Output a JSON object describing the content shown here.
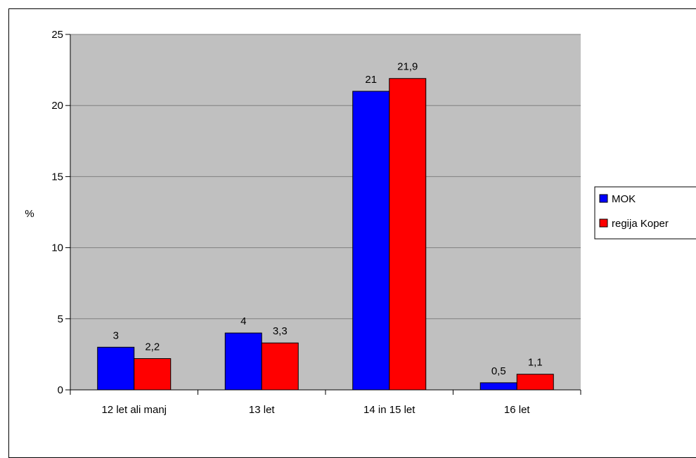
{
  "chart_data": {
    "type": "bar",
    "title": "",
    "xlabel": "",
    "ylabel": "%",
    "ylim": [
      0,
      25
    ],
    "yticks": [
      0,
      5,
      10,
      15,
      20,
      25
    ],
    "grid": true,
    "legend_position": "right",
    "categories": [
      "12 let ali manj",
      "13 let",
      "14 in 15 let",
      "16 let"
    ],
    "series": [
      {
        "name": "MOK",
        "color": "#0000FF",
        "values": [
          3,
          4,
          21,
          0.5
        ],
        "labels": [
          "3",
          "4",
          "21",
          "0,5"
        ]
      },
      {
        "name": "regija Koper",
        "color": "#FF0000",
        "values": [
          2.2,
          3.3,
          21.9,
          1.1
        ],
        "labels": [
          "2,2",
          "3,3",
          "21,9",
          "1,1"
        ]
      }
    ],
    "plot_background": "#C0C0C0"
  }
}
